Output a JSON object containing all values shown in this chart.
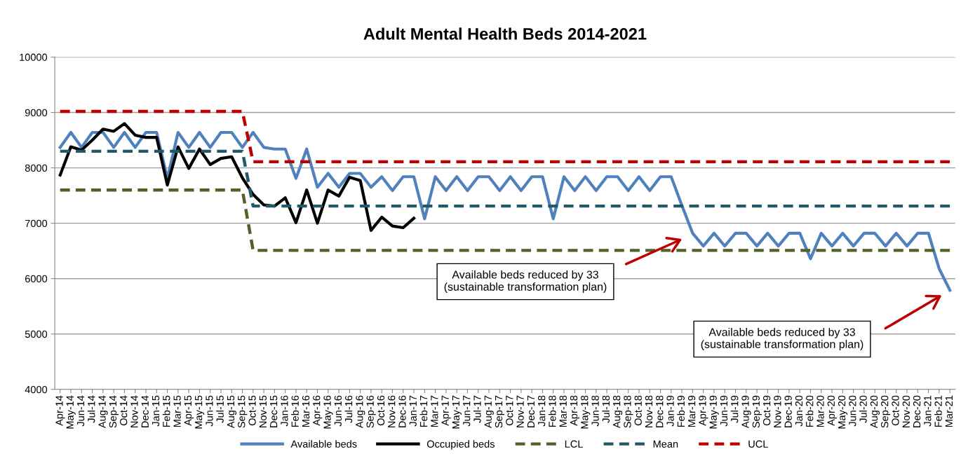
{
  "chart_data": {
    "type": "line",
    "title": "Adult Mental Health Beds 2014-2021",
    "categories": [
      "Apr-14",
      "May-14",
      "Jun-14",
      "Jul-14",
      "Aug-14",
      "Sep-14",
      "Oct-14",
      "Nov-14",
      "Dec-14",
      "Jan-15",
      "Feb-15",
      "Mar-15",
      "Apr-15",
      "May-15",
      "Jun-15",
      "Jul-15",
      "Aug-15",
      "Sep-15",
      "Oct-15",
      "Nov-15",
      "Dec-15",
      "Jan-16",
      "Feb-16",
      "Mar-16",
      "Apr-16",
      "May-16",
      "Jun-16",
      "Jul-16",
      "Aug-16",
      "Sep-16",
      "Oct-16",
      "Nov-16",
      "Dec-16",
      "Jan-17",
      "Feb-17",
      "Mar-17",
      "Apr-17",
      "May-17",
      "Jun-17",
      "Jul-17",
      "Aug-17",
      "Sep-17",
      "Oct-17",
      "Nov-17",
      "Dec-17",
      "Jan-18",
      "Feb-18",
      "Mar-18",
      "Apr-18",
      "May-18",
      "Jun-18",
      "Jul-18",
      "Aug-18",
      "Sep-18",
      "Oct-18",
      "Nov-18",
      "Dec-18",
      "Jan-19",
      "Feb-19",
      "Mar-19",
      "Apr-19",
      "May-19",
      "Jun-19",
      "Jul-19",
      "Aug-19",
      "Sep-19",
      "Oct-19",
      "Nov-19",
      "Dec-19",
      "Jan-20",
      "Feb-20",
      "Mar-20",
      "Apr-20",
      "May-20",
      "Jun-20",
      "Jul-20",
      "Aug-20",
      "Sep-20",
      "Oct-20",
      "Nov-20",
      "Dec-20",
      "Jan-21",
      "Feb-21",
      "Mar-21"
    ],
    "series": [
      {
        "name": "Available beds",
        "color": "#4f81bd",
        "line_style": "solid",
        "values": [
          8370,
          8640,
          8370,
          8640,
          8640,
          8370,
          8640,
          8370,
          8640,
          8640,
          7810,
          8640,
          8370,
          8640,
          8370,
          8640,
          8640,
          8370,
          8640,
          8370,
          8340,
          8340,
          7810,
          8340,
          7650,
          7900,
          7650,
          7900,
          7900,
          7650,
          7840,
          7590,
          7840,
          7840,
          7080,
          7840,
          7590,
          7840,
          7590,
          7840,
          7840,
          7590,
          7840,
          7590,
          7840,
          7840,
          7080,
          7840,
          7590,
          7840,
          7590,
          7840,
          7840,
          7590,
          7840,
          7590,
          7840,
          7840,
          7320,
          6820,
          6590,
          6820,
          6590,
          6820,
          6820,
          6590,
          6820,
          6590,
          6820,
          6820,
          6360,
          6820,
          6590,
          6820,
          6590,
          6820,
          6820,
          6590,
          6820,
          6590,
          6820,
          6820,
          6180,
          5790
        ]
      },
      {
        "name": "Occupied beds",
        "color": "#000000",
        "line_style": "solid",
        "values": [
          7870,
          8380,
          8320,
          8500,
          8700,
          8660,
          8800,
          8590,
          8550,
          8550,
          7690,
          8380,
          7990,
          8340,
          8060,
          8170,
          8200,
          7820,
          7520,
          7330,
          7310,
          7460,
          7010,
          7600,
          7000,
          7600,
          7490,
          7830,
          7770,
          6870,
          7110,
          6950,
          6920,
          7090,
          null,
          null,
          null,
          null,
          null,
          null,
          null,
          null,
          null,
          null,
          null,
          null,
          null,
          null,
          null,
          null,
          null,
          null,
          null,
          null,
          null,
          null,
          null,
          null,
          null,
          null,
          null,
          null,
          null,
          null,
          null,
          null,
          null,
          null,
          null,
          null,
          null,
          null,
          null,
          null,
          null,
          null,
          null,
          null,
          null,
          null,
          null,
          null,
          null,
          null
        ]
      },
      {
        "name": "LCL",
        "color": "#4f6228",
        "line_style": "dashed",
        "values": [
          7600,
          7600,
          7600,
          7600,
          7600,
          7600,
          7600,
          7600,
          7600,
          7600,
          7600,
          7600,
          7600,
          7600,
          7600,
          7600,
          7600,
          7600,
          6510,
          6510,
          6510,
          6510,
          6510,
          6510,
          6510,
          6510,
          6510,
          6510,
          6510,
          6510,
          6510,
          6510,
          6510,
          6510,
          6510,
          6510,
          6510,
          6510,
          6510,
          6510,
          6510,
          6510,
          6510,
          6510,
          6510,
          6510,
          6510,
          6510,
          6510,
          6510,
          6510,
          6510,
          6510,
          6510,
          6510,
          6510,
          6510,
          6510,
          6510,
          6510,
          6510,
          6510,
          6510,
          6510,
          6510,
          6510,
          6510,
          6510,
          6510,
          6510,
          6510,
          6510,
          6510,
          6510,
          6510,
          6510,
          6510,
          6510,
          6510,
          6510,
          6510,
          6510,
          6510,
          6510
        ]
      },
      {
        "name": "Mean",
        "color": "#215968",
        "line_style": "dashed",
        "values": [
          8300,
          8300,
          8300,
          8300,
          8300,
          8300,
          8300,
          8300,
          8300,
          8300,
          8300,
          8300,
          8300,
          8300,
          8300,
          8300,
          8300,
          8300,
          7310,
          7310,
          7310,
          7310,
          7310,
          7310,
          7310,
          7310,
          7310,
          7310,
          7310,
          7310,
          7310,
          7310,
          7310,
          7310,
          7310,
          7310,
          7310,
          7310,
          7310,
          7310,
          7310,
          7310,
          7310,
          7310,
          7310,
          7310,
          7310,
          7310,
          7310,
          7310,
          7310,
          7310,
          7310,
          7310,
          7310,
          7310,
          7310,
          7310,
          7310,
          7310,
          7310,
          7310,
          7310,
          7310,
          7310,
          7310,
          7310,
          7310,
          7310,
          7310,
          7310,
          7310,
          7310,
          7310,
          7310,
          7310,
          7310,
          7310,
          7310,
          7310,
          7310,
          7310,
          7310,
          7310
        ]
      },
      {
        "name": "UCL",
        "color": "#c00000",
        "line_style": "dashed",
        "values": [
          9020,
          9020,
          9020,
          9020,
          9020,
          9020,
          9020,
          9020,
          9020,
          9020,
          9020,
          9020,
          9020,
          9020,
          9020,
          9020,
          9020,
          9020,
          8110,
          8110,
          8110,
          8110,
          8110,
          8110,
          8110,
          8110,
          8110,
          8110,
          8110,
          8110,
          8110,
          8110,
          8110,
          8110,
          8110,
          8110,
          8110,
          8110,
          8110,
          8110,
          8110,
          8110,
          8110,
          8110,
          8110,
          8110,
          8110,
          8110,
          8110,
          8110,
          8110,
          8110,
          8110,
          8110,
          8110,
          8110,
          8110,
          8110,
          8110,
          8110,
          8110,
          8110,
          8110,
          8110,
          8110,
          8110,
          8110,
          8110,
          8110,
          8110,
          8110,
          8110,
          8110,
          8110,
          8110,
          8110,
          8110,
          8110,
          8110,
          8110,
          8110,
          8110,
          8110,
          8110
        ]
      }
    ],
    "ylim": [
      4000,
      10000
    ],
    "yticks": [
      4000,
      5000,
      6000,
      7000,
      8000,
      9000,
      10000
    ],
    "grid": "y",
    "legend": "bottom",
    "marker": "none",
    "annotations": [
      "Available beds reduced by 33\n(sustainable transformation plan)",
      "Available beds reduced by 33\n(sustainable transformation plan)"
    ]
  }
}
